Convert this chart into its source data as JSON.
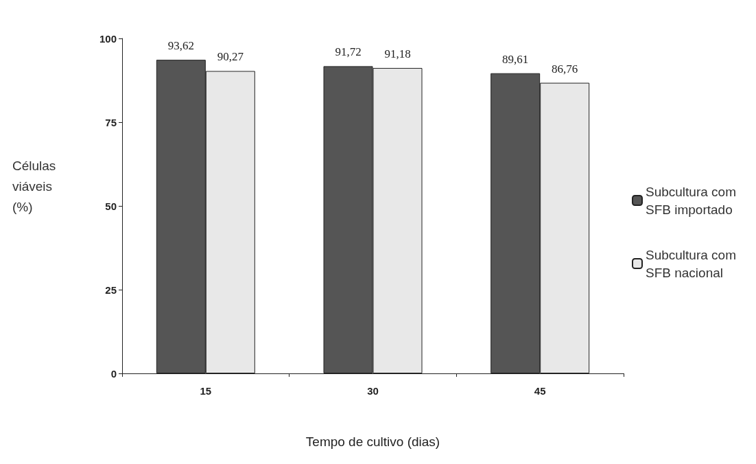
{
  "chart_data": {
    "type": "bar",
    "xlabel": "Tempo de cultivo (dias)",
    "ylabel": "Células viáveis (%)",
    "categories": [
      "15",
      "30",
      "45"
    ],
    "series": [
      {
        "name": "Subcultura com SFB importado",
        "color": "#555555",
        "values": [
          93.62,
          91.72,
          89.61
        ],
        "value_labels": [
          "93,62",
          "91,72",
          "89,61"
        ]
      },
      {
        "name": "Subcultura com SFB nacional",
        "color": "#e8e8e8",
        "values": [
          90.27,
          91.18,
          86.76
        ],
        "value_labels": [
          "90,27",
          "91,18",
          "86,76"
        ]
      }
    ],
    "ylim": [
      0,
      100
    ],
    "yticks": [
      0,
      25,
      50,
      75,
      100
    ],
    "grid": false,
    "legend": "right"
  }
}
